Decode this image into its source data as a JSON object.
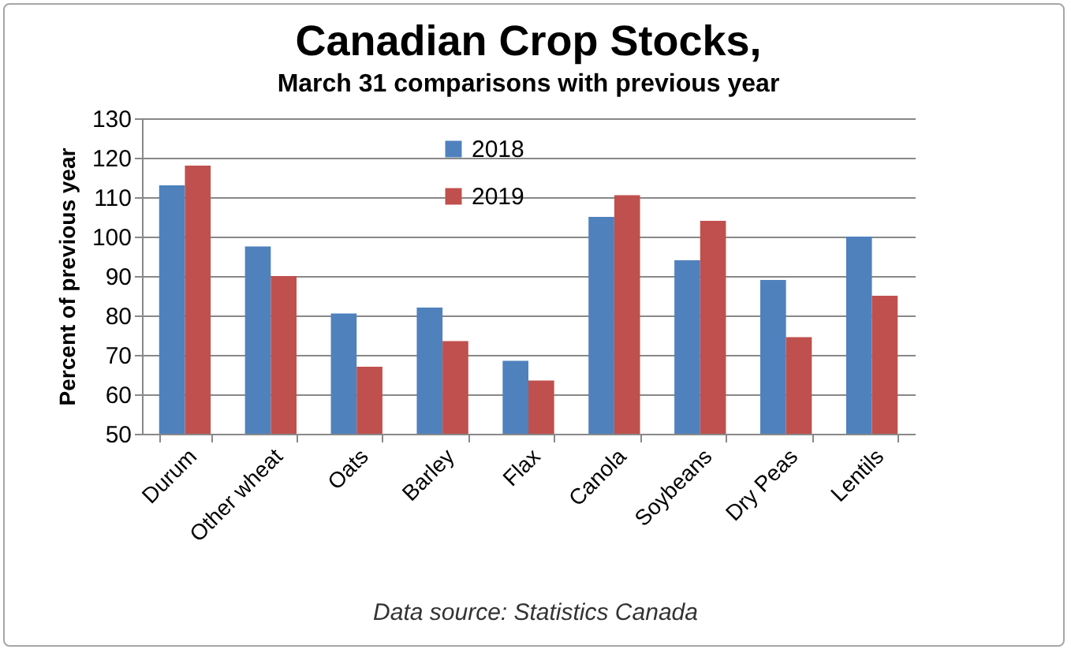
{
  "chart_data": {
    "type": "bar",
    "title": "Canadian Crop Stocks,",
    "subtitle": "March 31 comparisons  with previous year",
    "ylabel": "Percent of previous year",
    "categories": [
      "Durum",
      "Other wheat",
      "Oats",
      "Barley",
      "Flax",
      "Canola",
      "Soybeans",
      "Dry Peas",
      "Lentils"
    ],
    "series": [
      {
        "name": "2018",
        "color": "#4f81bd",
        "values": [
          113,
          97.5,
          80.5,
          82,
          68.5,
          105,
          94,
          89,
          100
        ]
      },
      {
        "name": "2019",
        "color": "#c0504d",
        "values": [
          118,
          90,
          67,
          73.5,
          63.5,
          110.5,
          104,
          74.5,
          85
        ]
      }
    ],
    "ylim": [
      50,
      130
    ],
    "yticks": [
      50,
      60,
      70,
      80,
      90,
      100,
      110,
      120,
      130
    ],
    "grid": "y",
    "legend": "top",
    "annotations": [
      "Data source: Statistics Canada"
    ]
  }
}
